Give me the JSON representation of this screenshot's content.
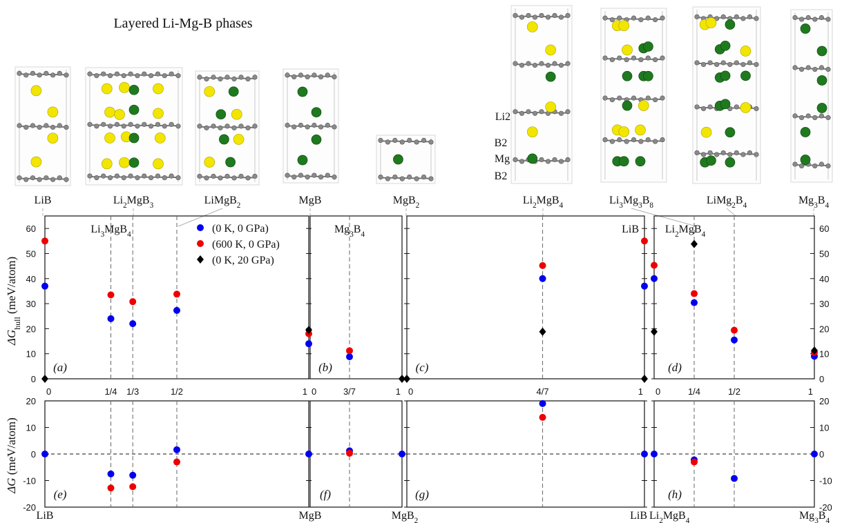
{
  "figure": {
    "title": "Layered Li-Mg-B phases",
    "structure_labels": [
      "LiB",
      "Li2MgB3",
      "LiMgB2",
      "MgB",
      "MgB2",
      "Li2MgB4",
      "Li3Mg3B8",
      "LiMg2B4",
      "Mg3B4"
    ],
    "side_legend": {
      "li": "Li2",
      "b_top": "B2",
      "mg": "Mg",
      "b_bottom": "B2"
    },
    "legend": [
      {
        "label": "(0 K, 0 GPa)",
        "color": "#0000ee",
        "marker": "circle"
      },
      {
        "label": "(600 K, 0 GPa)",
        "color": "#ee0000",
        "marker": "circle"
      },
      {
        "label": "(0 K, 20 GPa)",
        "color": "#000000",
        "marker": "diamond"
      }
    ],
    "colors": {
      "blue": "#0000ee",
      "red": "#ee0000",
      "black": "#000000",
      "li_atom": "#f2e600",
      "mg_atom": "#1f7a1f",
      "b_atom": "#8a8a8a"
    },
    "top_axis_labels": [
      "ΔG_hull (meV/atom)"
    ],
    "bottom_axis_label": "ΔG (meV/atom)",
    "bottom_x_labels": [
      "LiB",
      "MgB",
      "MgB2",
      "LiB",
      "Li2MgB4",
      "Mg3B4"
    ]
  },
  "chart_data": [
    {
      "type": "scatter",
      "panel": "(a)",
      "xlim": [
        0,
        1
      ],
      "ylim": [
        0,
        65
      ],
      "xticks": [
        "0",
        "1/4",
        "1/3",
        "1/2",
        "1"
      ],
      "top_labels": [
        {
          "x": 0.25,
          "text": "Li3MgB4"
        }
      ],
      "series": [
        {
          "name": "(0 K, 0 GPa)",
          "points": [
            [
              0,
              37
            ],
            [
              0.25,
              24
            ],
            [
              0.333,
              22
            ],
            [
              0.5,
              27.3
            ],
            [
              1,
              14
            ]
          ]
        },
        {
          "name": "(600 K, 0 GPa)",
          "points": [
            [
              0,
              55
            ],
            [
              0.25,
              33.5
            ],
            [
              0.333,
              30.8
            ],
            [
              0.5,
              33.8
            ],
            [
              1,
              18
            ]
          ]
        },
        {
          "name": "(0 K, 20 GPa)",
          "points": [
            [
              0,
              0
            ],
            [
              1,
              19.5
            ]
          ]
        }
      ]
    },
    {
      "type": "scatter",
      "panel": "(b)",
      "xlim": [
        0,
        1
      ],
      "ylim": [
        0,
        65
      ],
      "xticks": [
        "0",
        "3/7",
        "1"
      ],
      "top_labels": [
        {
          "x": 0.4286,
          "text": "Mg3B4"
        }
      ],
      "series": [
        {
          "name": "(0 K, 0 GPa)",
          "points": [
            [
              0.4286,
              8.8
            ]
          ]
        },
        {
          "name": "(600 K, 0 GPa)",
          "points": [
            [
              0.4286,
              11.2
            ]
          ]
        },
        {
          "name": "(0 K, 20 GPa)",
          "points": [
            [
              1,
              0
            ]
          ]
        }
      ]
    },
    {
      "type": "scatter",
      "panel": "(c)",
      "xlim": [
        0,
        1
      ],
      "ylim": [
        0,
        65
      ],
      "xticks": [
        "0",
        "4/7",
        "1"
      ],
      "top_labels": [
        {
          "x": 1,
          "text": "LiB"
        }
      ],
      "series": [
        {
          "name": "(0 K, 0 GPa)",
          "points": [
            [
              0.5714,
              40
            ],
            [
              1,
              37
            ]
          ]
        },
        {
          "name": "(600 K, 0 GPa)",
          "points": [
            [
              0.5714,
              45.2
            ],
            [
              1,
              55
            ]
          ]
        },
        {
          "name": "(0 K, 20 GPa)",
          "points": [
            [
              0,
              0
            ],
            [
              0.5714,
              18.8
            ],
            [
              1,
              0
            ]
          ]
        }
      ]
    },
    {
      "type": "scatter",
      "panel": "(d)",
      "xlim": [
        0,
        1
      ],
      "ylim": [
        0,
        65
      ],
      "xticks": [
        "0",
        "1/4",
        "1/2",
        "1"
      ],
      "top_labels": [
        {
          "x": 0.1,
          "text": "Li2MgB4"
        }
      ],
      "series": [
        {
          "name": "(0 K, 0 GPa)",
          "points": [
            [
              0,
              40
            ],
            [
              0.25,
              30.4
            ],
            [
              0.5,
              15.5
            ],
            [
              1,
              9
            ]
          ]
        },
        {
          "name": "(600 K, 0 GPa)",
          "points": [
            [
              0,
              45.3
            ],
            [
              0.25,
              34
            ],
            [
              0.5,
              19.4
            ],
            [
              1,
              10.5
            ]
          ]
        },
        {
          "name": "(0 K, 20 GPa)",
          "points": [
            [
              0,
              18.8
            ],
            [
              0.25,
              53.8
            ],
            [
              1,
              11.3
            ]
          ]
        }
      ]
    },
    {
      "type": "scatter",
      "panel": "(e)",
      "xlim": [
        0,
        1
      ],
      "ylim": [
        -20,
        20
      ],
      "series": [
        {
          "name": "(0 K, 0 GPa)",
          "points": [
            [
              0,
              0
            ],
            [
              0.25,
              -7.5
            ],
            [
              0.333,
              -8
            ],
            [
              0.5,
              1.6
            ],
            [
              1,
              0
            ]
          ]
        },
        {
          "name": "(600 K, 0 GPa)",
          "points": [
            [
              0.25,
              -12.8
            ],
            [
              0.333,
              -12.3
            ],
            [
              0.5,
              -3
            ]
          ]
        }
      ]
    },
    {
      "type": "scatter",
      "panel": "(f)",
      "xlim": [
        0,
        1
      ],
      "ylim": [
        -20,
        20
      ],
      "series": [
        {
          "name": "(0 K, 0 GPa)",
          "points": [
            [
              0.4286,
              1.2
            ],
            [
              1,
              0
            ]
          ]
        },
        {
          "name": "(600 K, 0 GPa)",
          "points": [
            [
              0.4286,
              0.3
            ]
          ]
        }
      ]
    },
    {
      "type": "scatter",
      "panel": "(g)",
      "xlim": [
        0,
        1
      ],
      "ylim": [
        -20,
        20
      ],
      "series": [
        {
          "name": "(0 K, 0 GPa)",
          "points": [
            [
              0.5714,
              19
            ],
            [
              1,
              0
            ]
          ]
        },
        {
          "name": "(600 K, 0 GPa)",
          "points": [
            [
              0.5714,
              13.8
            ]
          ]
        }
      ]
    },
    {
      "type": "scatter",
      "panel": "(h)",
      "xlim": [
        0,
        1
      ],
      "ylim": [
        -20,
        20
      ],
      "series": [
        {
          "name": "(0 K, 0 GPa)",
          "points": [
            [
              0,
              0
            ],
            [
              0.25,
              -2.2
            ],
            [
              0.5,
              -9.2
            ],
            [
              1,
              0
            ]
          ]
        },
        {
          "name": "(600 K, 0 GPa)",
          "points": [
            [
              0.25,
              -3
            ]
          ]
        }
      ]
    }
  ]
}
